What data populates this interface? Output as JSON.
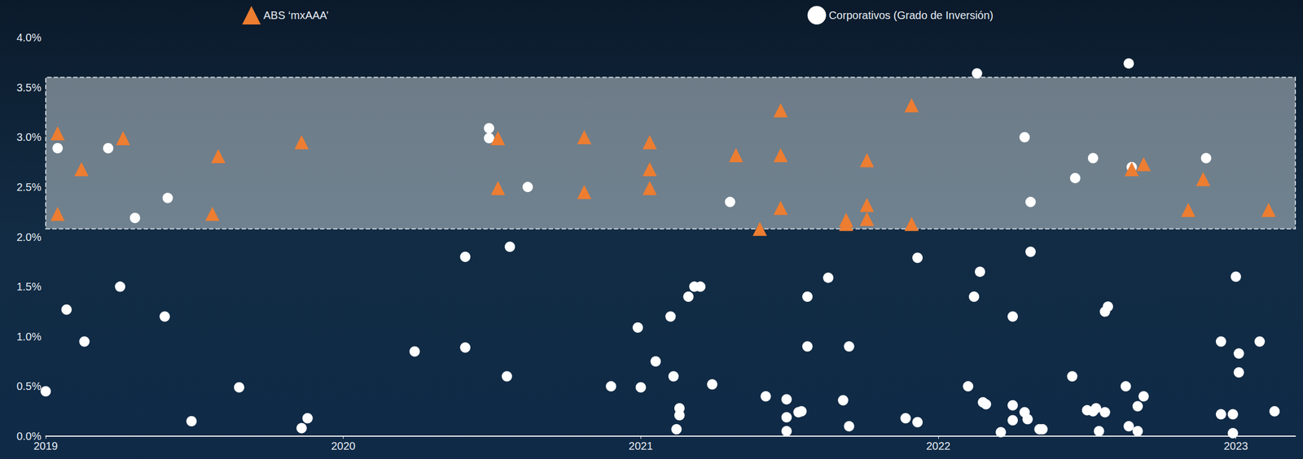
{
  "chart_data": {
    "type": "scatter",
    "legend": "top",
    "grid": false,
    "xlim": [
      2019,
      2023.2
    ],
    "xticks": [
      2019,
      2020,
      2021,
      2022,
      2023
    ],
    "ylim": [
      0,
      4.0
    ],
    "yticks": [
      {
        "value": 0,
        "label": "0.0%"
      },
      {
        "value": 0.5,
        "label": "0.5%"
      },
      {
        "value": 1.0,
        "label": "1.0%"
      },
      {
        "value": 1.5,
        "label": "1.5%"
      },
      {
        "value": 2.0,
        "label": "2.0%"
      },
      {
        "value": 2.5,
        "label": "2.5%"
      },
      {
        "value": 3.0,
        "label": "3.0%"
      },
      {
        "value": 3.5,
        "label": "3.5%"
      },
      {
        "value": 4.0,
        "label": "4.0%"
      }
    ],
    "shaded_range": [
      2.08,
      3.6
    ],
    "series": [
      {
        "name": "ABS ‘mxAAA’",
        "color": "#ed7d31",
        "marker": "triangle",
        "x": [
          2019.04,
          2019.04,
          2019.12,
          2019.26,
          2019.56,
          2019.58,
          2019.86,
          2020.52,
          2020.52,
          2020.81,
          2020.81,
          2021.03,
          2021.03,
          2021.03,
          2021.32,
          2021.4,
          2021.47,
          2021.47,
          2021.47,
          2021.69,
          2021.69,
          2021.76,
          2021.76,
          2021.76,
          2021.91,
          2021.91,
          2022.65,
          2022.69,
          2022.84,
          2022.89,
          2023.11
        ],
        "values": [
          3.04,
          2.23,
          2.68,
          2.99,
          2.23,
          2.81,
          2.95,
          2.99,
          2.49,
          3.0,
          2.45,
          2.95,
          2.68,
          2.49,
          2.82,
          2.08,
          3.27,
          2.82,
          2.29,
          2.17,
          2.13,
          2.77,
          2.32,
          2.18,
          3.32,
          2.13,
          2.68,
          2.73,
          2.27,
          2.58,
          2.27
        ]
      },
      {
        "name": "Corporativos (Grado de Inversión)",
        "color": "#ffffff",
        "marker": "circle",
        "x": [
          2019.0,
          2019.04,
          2019.07,
          2019.13,
          2019.21,
          2019.25,
          2019.3,
          2019.4,
          2019.41,
          2019.49,
          2019.65,
          2019.86,
          2019.88,
          2020.24,
          2020.41,
          2020.41,
          2020.49,
          2020.49,
          2020.55,
          2020.56,
          2020.62,
          2020.9,
          2020.99,
          2021.0,
          2021.05,
          2021.1,
          2021.11,
          2021.12,
          2021.13,
          2021.13,
          2021.16,
          2021.18,
          2021.2,
          2021.24,
          2021.3,
          2021.42,
          2021.49,
          2021.49,
          2021.49,
          2021.53,
          2021.54,
          2021.56,
          2021.56,
          2021.63,
          2021.68,
          2021.7,
          2021.7,
          2021.93,
          2021.89,
          2021.93,
          2022.1,
          2022.12,
          2022.13,
          2022.14,
          2022.15,
          2022.16,
          2022.21,
          2022.25,
          2022.25,
          2022.25,
          2022.29,
          2022.29,
          2022.3,
          2022.31,
          2022.31,
          2022.34,
          2022.35,
          2022.45,
          2022.46,
          2022.5,
          2022.52,
          2022.52,
          2022.53,
          2022.54,
          2022.56,
          2022.56,
          2022.57,
          2022.63,
          2022.64,
          2022.64,
          2022.65,
          2022.67,
          2022.67,
          2022.69,
          2022.9,
          2022.95,
          2022.95,
          2022.99,
          2022.99,
          2023.0,
          2023.01,
          2023.01,
          2023.08,
          2023.13
        ],
        "values": [
          0.45,
          2.89,
          1.27,
          0.95,
          2.89,
          1.5,
          2.19,
          1.2,
          2.39,
          0.15,
          0.49,
          0.08,
          0.18,
          0.85,
          1.8,
          0.89,
          3.09,
          2.99,
          0.6,
          1.9,
          2.5,
          0.5,
          1.09,
          0.49,
          0.75,
          1.2,
          0.6,
          0.07,
          0.28,
          0.21,
          1.4,
          1.5,
          1.5,
          0.52,
          2.35,
          0.4,
          0.37,
          0.19,
          0.05,
          0.24,
          0.25,
          1.4,
          0.9,
          1.59,
          0.36,
          0.1,
          0.9,
          1.79,
          0.18,
          0.14,
          0.5,
          1.4,
          3.64,
          1.65,
          0.34,
          0.32,
          0.04,
          1.2,
          0.31,
          0.16,
          3.0,
          0.24,
          0.17,
          1.85,
          2.35,
          0.07,
          0.07,
          0.6,
          2.59,
          0.26,
          2.79,
          0.25,
          0.28,
          0.05,
          0.24,
          1.25,
          1.3,
          0.5,
          0.1,
          3.74,
          2.7,
          0.3,
          0.05,
          0.4,
          2.79,
          0.95,
          0.22,
          0.22,
          0.03,
          1.6,
          0.83,
          0.64,
          0.95,
          0.25
        ]
      }
    ]
  }
}
